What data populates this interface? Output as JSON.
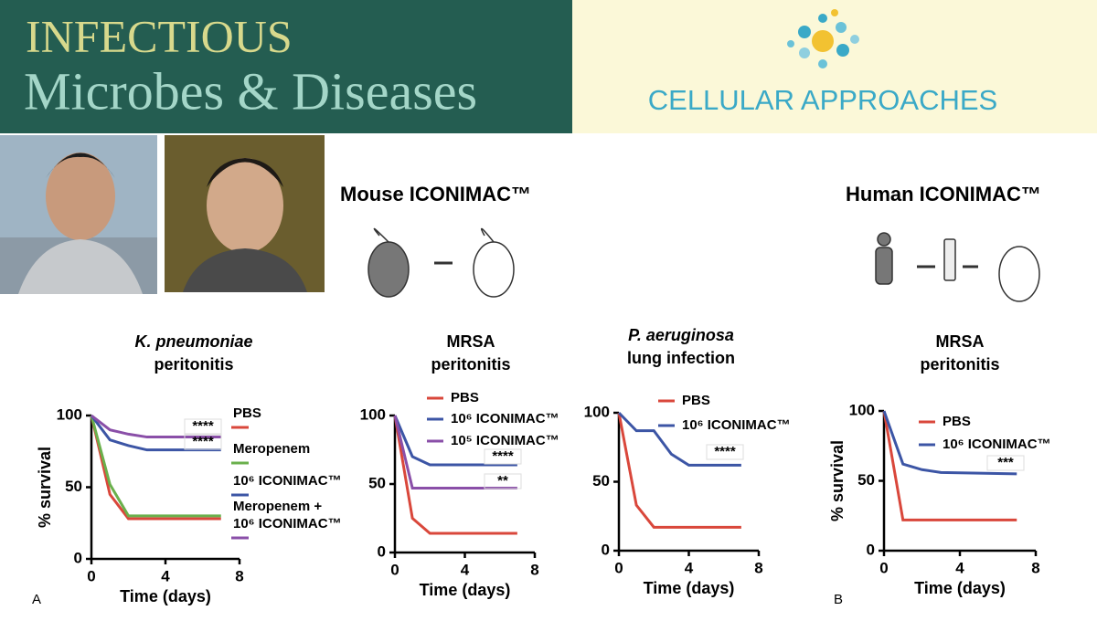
{
  "header": {
    "journal_line1": "INFECTIOUS",
    "journal_line2": "Microbes & Diseases",
    "brand": "CELLULAR APPROACHES"
  },
  "sections": [
    "Mouse ICONIMAC™",
    "Human ICONIMAC™"
  ],
  "panel_labels": [
    "A",
    "B"
  ],
  "chart_data": [
    {
      "type": "line",
      "title": [
        "K. pneumoniae",
        "peritonitis"
      ],
      "title_italic": [
        true,
        false
      ],
      "xlabel": "Time (days)",
      "ylabel": "% survival",
      "legend": "right",
      "x": [
        0,
        1,
        2,
        3,
        7
      ],
      "series": [
        {
          "name": "PBS",
          "color": "#d9473b",
          "values": [
            100,
            45,
            28,
            28,
            28
          ]
        },
        {
          "name": "Meropenem",
          "color": "#6ab04c",
          "values": [
            100,
            52,
            30,
            30,
            30
          ]
        },
        {
          "name": "10⁶ ICONIMAC™",
          "color": "#3c55a5",
          "values": [
            100,
            83,
            79,
            76,
            76
          ]
        },
        {
          "name": "Meropenem + 10⁶ ICONIMAC™",
          "color": "#8a4fa8",
          "values": [
            100,
            90,
            87,
            85,
            85
          ]
        }
      ],
      "xlim": [
        0,
        8
      ],
      "ylim": [
        0,
        100
      ],
      "xticks": [
        0,
        4,
        8
      ],
      "yticks": [
        0,
        50,
        100
      ],
      "annotations": [
        "****",
        "****"
      ]
    },
    {
      "type": "line",
      "title": [
        "MRSA",
        "peritonitis"
      ],
      "title_italic": [
        false,
        false
      ],
      "xlabel": "Time (days)",
      "legend": "upper right",
      "x": [
        0,
        1,
        2,
        7
      ],
      "series": [
        {
          "name": "PBS",
          "color": "#d9473b",
          "values": [
            100,
            25,
            14,
            14
          ]
        },
        {
          "name": "10⁶ ICONIMAC™",
          "color": "#3c55a5",
          "values": [
            100,
            70,
            64,
            64
          ]
        },
        {
          "name": "10⁵ ICONIMAC™",
          "color": "#8a4fa8",
          "values": [
            100,
            47,
            47,
            47
          ]
        }
      ],
      "xlim": [
        0,
        8
      ],
      "ylim": [
        0,
        100
      ],
      "xticks": [
        0,
        4,
        8
      ],
      "yticks": [
        0,
        50,
        100
      ],
      "annotations": [
        "****",
        "**"
      ]
    },
    {
      "type": "line",
      "title": [
        "P. aeruginosa",
        "lung infection"
      ],
      "title_italic": [
        true,
        false
      ],
      "xlabel": "Time (days)",
      "legend": "upper right",
      "x": [
        0,
        1,
        2,
        3,
        4,
        7
      ],
      "series": [
        {
          "name": "PBS",
          "color": "#d9473b",
          "values": [
            100,
            33,
            17,
            17,
            17,
            17
          ]
        },
        {
          "name": "10⁶ ICONIMAC™",
          "color": "#3c55a5",
          "values": [
            100,
            87,
            87,
            70,
            62,
            62
          ]
        }
      ],
      "xlim": [
        0,
        8
      ],
      "ylim": [
        0,
        100
      ],
      "xticks": [
        0,
        4,
        8
      ],
      "yticks": [
        0,
        50,
        100
      ],
      "annotations": [
        "****"
      ]
    },
    {
      "type": "line",
      "title": [
        "MRSA",
        "peritonitis"
      ],
      "title_italic": [
        false,
        false
      ],
      "xlabel": "Time (days)",
      "ylabel": "% survival",
      "legend": "upper right",
      "x": [
        0,
        1,
        2,
        3,
        7
      ],
      "series": [
        {
          "name": "PBS",
          "color": "#d9473b",
          "values": [
            100,
            22,
            22,
            22,
            22
          ]
        },
        {
          "name": "10⁶ ICONIMAC™",
          "color": "#3c55a5",
          "values": [
            100,
            62,
            58,
            56,
            55
          ]
        }
      ],
      "xlim": [
        0,
        8
      ],
      "ylim": [
        0,
        100
      ],
      "xticks": [
        0,
        4,
        8
      ],
      "yticks": [
        0,
        50,
        100
      ],
      "annotations": [
        "***"
      ]
    }
  ]
}
